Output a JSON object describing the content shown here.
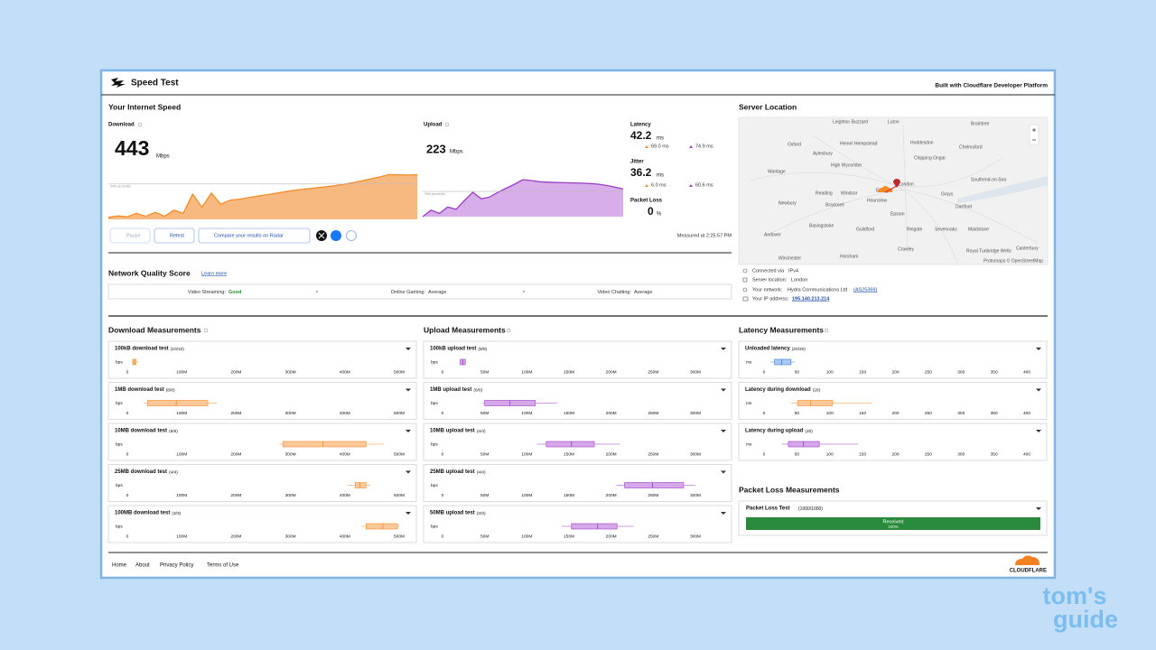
{
  "header": {
    "title": "Speed Test",
    "built_with": "Built with Cloudflare Developer Platform"
  },
  "speed": {
    "heading": "Your Internet Speed",
    "download": {
      "label": "Download",
      "value": 443,
      "unit": "Mbps",
      "color": "#f28c28",
      "ylim": [
        0,
        500
      ],
      "values": [
        20,
        35,
        25,
        60,
        30,
        70,
        30,
        90,
        60,
        250,
        120,
        260,
        150,
        190,
        200,
        215,
        230,
        245,
        260,
        275,
        290,
        300,
        310,
        320,
        330,
        345,
        360,
        380,
        400,
        420,
        443,
        440,
        438,
        440
      ],
      "percentile": {
        "label": "90th percentile",
        "value": 350
      }
    },
    "upload": {
      "label": "Upload",
      "value": 223,
      "unit": "Mbps",
      "color": "#9b3fc1",
      "ylim": [
        0,
        250
      ],
      "values": [
        0,
        40,
        20,
        60,
        45,
        100,
        150,
        110,
        120,
        150,
        175,
        200,
        228,
        222,
        215,
        212,
        210,
        209,
        208,
        206,
        204,
        200,
        192,
        182,
        170
      ],
      "percentile": {
        "label": "90th percentile",
        "value": 155
      }
    },
    "latency": {
      "label": "Latency",
      "value": 42.2,
      "unit": "ms",
      "down": "69.0 ms",
      "up": "74.9 ms"
    },
    "jitter": {
      "label": "Jitter",
      "value": 36.2,
      "unit": "ms",
      "down": "6.0 ms",
      "up": "60.6 ms"
    },
    "packet_loss": {
      "label": "Packet Loss",
      "value": 0,
      "unit": "%"
    },
    "buttons": [
      "Pause",
      "Retest",
      "Compare your results on Radar"
    ],
    "measured": "Measured at 2:25:57 PM"
  },
  "quality": {
    "title": "Network Quality Score",
    "learn_more": "Learn more",
    "items": [
      {
        "label": "Video Streaming:",
        "value": "Good"
      },
      {
        "label": "Online Gaming:",
        "value": "Average"
      },
      {
        "label": "Video Chatting:",
        "value": "Average"
      }
    ]
  },
  "server": {
    "title": "Server Location",
    "map": {
      "labels": [
        "Leighton Buzzard",
        "Luton",
        "Braintree",
        "Hemel Hempstead",
        "Hoddesdon",
        "Chelmsford",
        "Oxford",
        "Aylesbury",
        "Chipping Ongar",
        "High Wycombe",
        "Wantage",
        "Southend-on-Sea",
        "Reading",
        "Windsor",
        "Ealing",
        "London",
        "Grays",
        "Newbury",
        "Bracknell",
        "Hounslow",
        "Dartford",
        "Epsom",
        "Maidstone",
        "Basingstoke",
        "Guildford",
        "Reigate",
        "Sevenoaks",
        "Andover",
        "Crawley",
        "Royal Tunbridge Wells",
        "Winchester",
        "Horsham",
        "Canterbury",
        "Protomaps © OpenStreetMap"
      ]
    },
    "info": [
      {
        "label": "Connected via",
        "value": "IPv4"
      },
      {
        "label": "Server location:",
        "value": "London"
      },
      {
        "label": "Your network:",
        "value": "Hydra Communications Ltd",
        "extra": "(AS25369)"
      },
      {
        "label": "Your IP address:",
        "value": "195.140.213.214"
      }
    ]
  },
  "measurements": [
    {
      "title": "Download Measurements",
      "unit": "bps",
      "color": "#f28c28",
      "fill": "#fbc89a",
      "xlim": [
        0,
        500
      ],
      "xticks": [
        0,
        {
          "value": 100,
          "label": "100M"
        },
        {
          "value": 200,
          "label": "200M"
        },
        {
          "value": 300,
          "label": "300M"
        },
        {
          "value": 400,
          "label": "400M"
        },
        {
          "value": 500,
          "label": "500M"
        }
      ],
      "tests": [
        {
          "name": "100kB download test",
          "count": "(10/10)",
          "box": [
            8,
            10,
            13,
            16,
            20
          ]
        },
        {
          "name": "1MB download test",
          "count": "(8/8)",
          "box": [
            30,
            37,
            90,
            148,
            165
          ]
        },
        {
          "name": "10MB download test",
          "count": "(6/6)",
          "box": [
            280,
            286,
            360,
            439,
            472
          ]
        },
        {
          "name": "25MB download test",
          "count": "(4/4)",
          "box": [
            405,
            419,
            428,
            439,
            447
          ]
        },
        {
          "name": "100MB download test",
          "count": "(3/3)",
          "box": [
            430,
            439,
            470,
            497,
            500
          ]
        }
      ]
    },
    {
      "title": "Upload Measurements",
      "unit": "bps",
      "color": "#9b3fc1",
      "fill": "#d6a8ea",
      "xlim": [
        0,
        300
      ],
      "xticks": [
        0,
        {
          "value": 50,
          "label": "50M"
        },
        {
          "value": 100,
          "label": "100M"
        },
        {
          "value": 150,
          "label": "150M"
        },
        {
          "value": 200,
          "label": "200M"
        },
        {
          "value": 250,
          "label": "250M"
        },
        {
          "value": 300,
          "label": "300M"
        }
      ],
      "tests": [
        {
          "name": "100kB upload test",
          "count": "(8/8)",
          "box": [
            20,
            21,
            24,
            27,
            28
          ]
        },
        {
          "name": "1MB upload test",
          "count": "(6/6)",
          "box": [
            48,
            50,
            80,
            110,
            136
          ]
        },
        {
          "name": "10MB upload test",
          "count": "(4/4)",
          "box": [
            112,
            123,
            153,
            180,
            210
          ]
        },
        {
          "name": "25MB upload test",
          "count": "(4/4)",
          "box": [
            206,
            216,
            249,
            286,
            300
          ]
        },
        {
          "name": "50MB upload test",
          "count": "(3/3)",
          "box": [
            141,
            153,
            184,
            207,
            227
          ]
        }
      ]
    },
    {
      "title": "Latency Measurements",
      "unit": "ms",
      "color": "#9b3fc1",
      "fill": "#d6a8ea",
      "xlim": [
        0,
        400
      ],
      "xticks": [
        0,
        50,
        100,
        150,
        200,
        250,
        300,
        350,
        400
      ],
      "tests": [
        {
          "name": "Unloaded latency",
          "count": "(20/20)",
          "box": [
            10,
            16,
            27,
            41,
            47
          ],
          "color": "#3b7dd8",
          "fill": "#a9c8f2"
        },
        {
          "name": "Latency during download",
          "count": "(20)",
          "box": [
            41,
            51,
            71,
            104,
            164
          ],
          "color": "#f28c28",
          "fill": "#fbc89a"
        },
        {
          "name": "Latency during upload",
          "count": "(20)",
          "box": [
            27,
            37,
            60,
            84,
            143
          ]
        }
      ]
    }
  ],
  "packet_loss": {
    "title": "Packet Loss Measurements",
    "test": "Packet Loss Test",
    "count": "(1000/1000)",
    "status": "Received",
    "percent": "100%"
  },
  "footer": {
    "links": [
      "Home",
      "About",
      "Privacy Policy",
      "Terms of Use"
    ],
    "brand": "CLOUDFLARE"
  },
  "watermark": {
    "line1": "tom's",
    "line2": "guide"
  }
}
